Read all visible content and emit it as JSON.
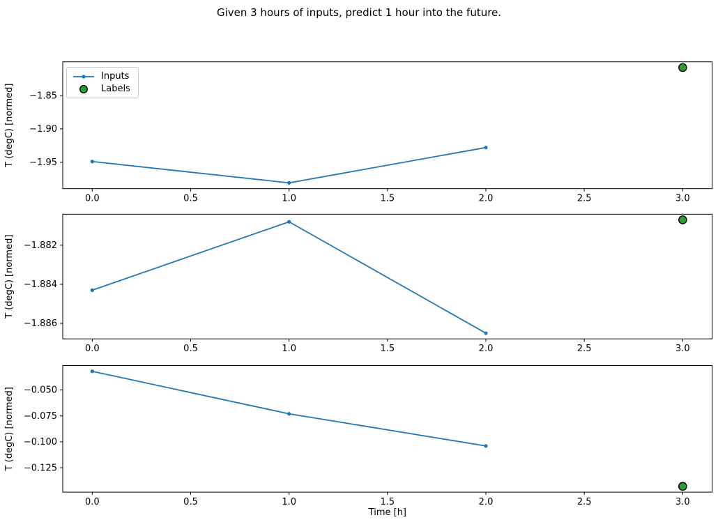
{
  "figure": {
    "title": "Given 3 hours of inputs, predict 1 hour into the future."
  },
  "legend": {
    "items": [
      {
        "label": "Inputs",
        "marker": "line-with-dot"
      },
      {
        "label": "Labels",
        "marker": "filled-circle"
      }
    ]
  },
  "colors": {
    "inputs": "#1f77b4",
    "labels_fill": "#2ca02c",
    "labels_edge": "#000000",
    "axis": "#000000",
    "text": "#000000",
    "legend_border": "#cccccc"
  },
  "chart_data": {
    "type": "line",
    "title": "Given 3 hours of inputs, predict 1 hour into the future.",
    "xlabel": "Time [h]",
    "ylabel": "T (degC) [normed]",
    "grid": false,
    "legend_position": "upper left of first subplot",
    "xlim": [
      -0.15,
      3.15
    ],
    "xticks": [
      {
        "v": 0.0,
        "label": "0.0"
      },
      {
        "v": 0.5,
        "label": "0.5"
      },
      {
        "v": 1.0,
        "label": "1.0"
      },
      {
        "v": 1.5,
        "label": "1.5"
      },
      {
        "v": 2.0,
        "label": "2.0"
      },
      {
        "v": 2.5,
        "label": "2.5"
      },
      {
        "v": 3.0,
        "label": "3.0"
      }
    ],
    "subplots": [
      {
        "ylabel": "T (degC) [normed]",
        "ylim": [
          -1.9897,
          -1.7994
        ],
        "yticks": [
          {
            "v": -1.85,
            "label": "−1.85"
          },
          {
            "v": -1.9,
            "label": "−1.90"
          },
          {
            "v": -1.95,
            "label": "−1.95"
          }
        ],
        "series": [
          {
            "name": "Inputs",
            "type": "line+marker",
            "x": [
              0,
              1,
              2
            ],
            "y": [
              -1.949,
              -1.981,
              -1.928
            ]
          },
          {
            "name": "Labels",
            "type": "scatter",
            "x": [
              3
            ],
            "y": [
              -1.808
            ]
          }
        ]
      },
      {
        "ylabel": "T (degC) [normed]",
        "ylim": [
          -1.88679,
          -1.88041
        ],
        "yticks": [
          {
            "v": -1.882,
            "label": "−1.882"
          },
          {
            "v": -1.884,
            "label": "−1.884"
          },
          {
            "v": -1.886,
            "label": "−1.886"
          }
        ],
        "series": [
          {
            "name": "Inputs",
            "type": "line+marker",
            "x": [
              0,
              1,
              2
            ],
            "y": [
              -1.8843,
              -1.8808,
              -1.8865
            ]
          },
          {
            "name": "Labels",
            "type": "scatter",
            "x": [
              3
            ],
            "y": [
              -1.8807
            ]
          }
        ]
      },
      {
        "ylabel": "T (degC) [normed]",
        "ylim": [
          -0.14855,
          -0.02645
        ],
        "yticks": [
          {
            "v": -0.05,
            "label": "−0.050"
          },
          {
            "v": -0.075,
            "label": "−0.075"
          },
          {
            "v": -0.1,
            "label": "−0.100"
          },
          {
            "v": -0.125,
            "label": "−0.125"
          }
        ],
        "series": [
          {
            "name": "Inputs",
            "type": "line+marker",
            "x": [
              0,
              1,
              2
            ],
            "y": [
              -0.032,
              -0.073,
              -0.104
            ]
          },
          {
            "name": "Labels",
            "type": "scatter",
            "x": [
              3
            ],
            "y": [
              -0.143
            ]
          }
        ]
      }
    ]
  }
}
